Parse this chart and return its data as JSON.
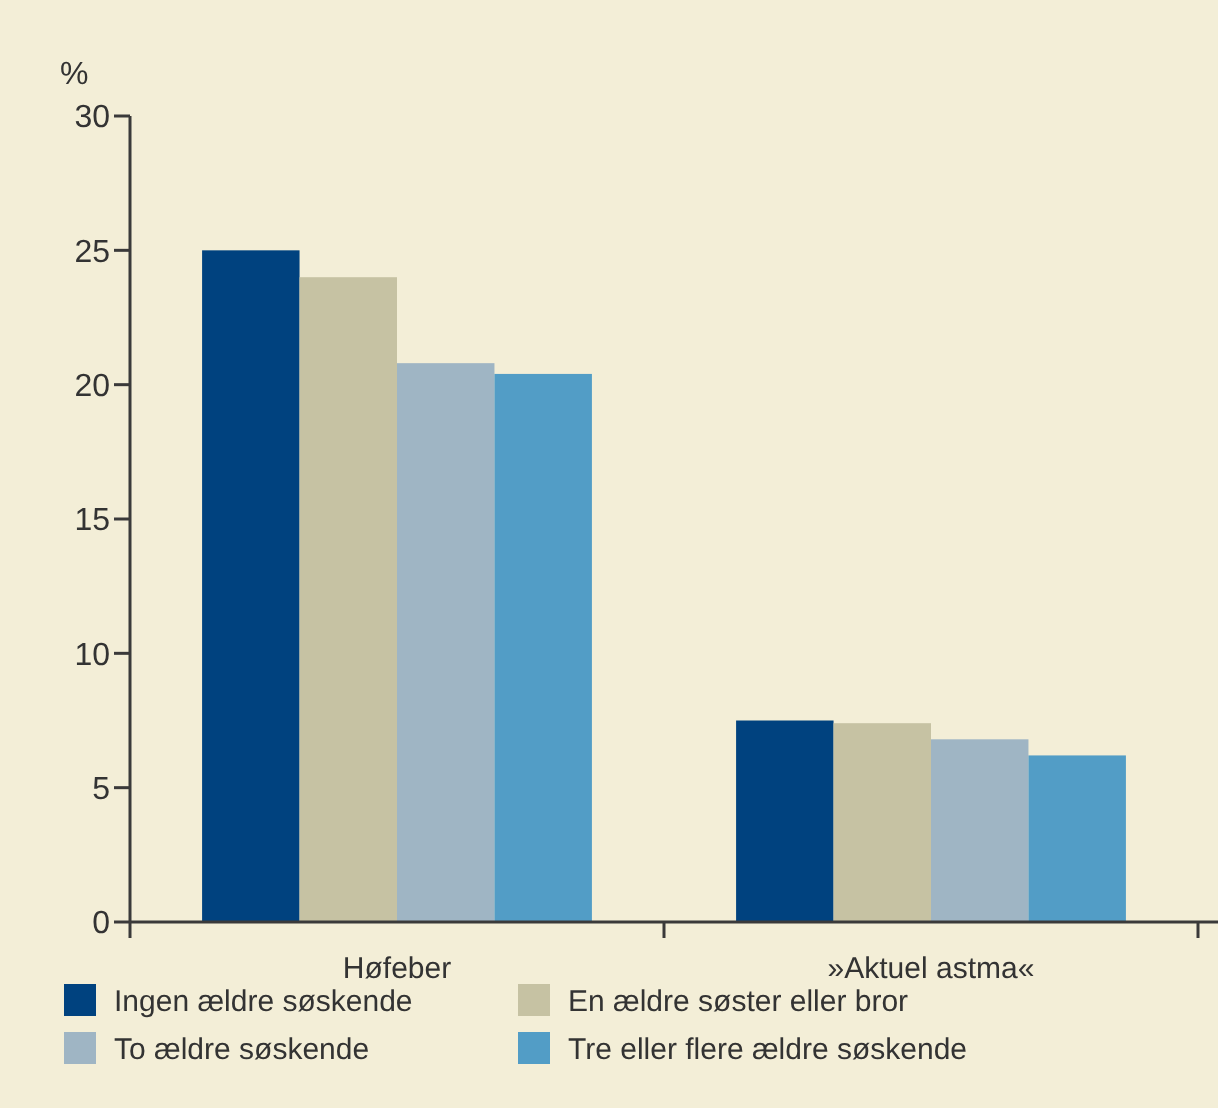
{
  "chart_data": {
    "type": "bar",
    "ylabel": "%",
    "categories": [
      "Høfeber",
      "»Aktuel astma«"
    ],
    "series": [
      {
        "name": "Ingen ældre søskende",
        "color": "#00427f",
        "values": [
          25.0,
          7.5
        ]
      },
      {
        "name": "En ældre søster eller bror",
        "color": "#c6c2a3",
        "values": [
          24.0,
          7.4
        ]
      },
      {
        "name": "To ældre søskende",
        "color": "#9fb5c4",
        "values": [
          20.8,
          6.8
        ]
      },
      {
        "name": "Tre eller flere ældre søskende",
        "color": "#529dc6",
        "values": [
          20.4,
          6.2
        ]
      }
    ],
    "ylim": [
      0,
      30
    ],
    "yticks": [
      0,
      5,
      10,
      15,
      20,
      25,
      30
    ],
    "grid": false,
    "legend": "bottom"
  }
}
